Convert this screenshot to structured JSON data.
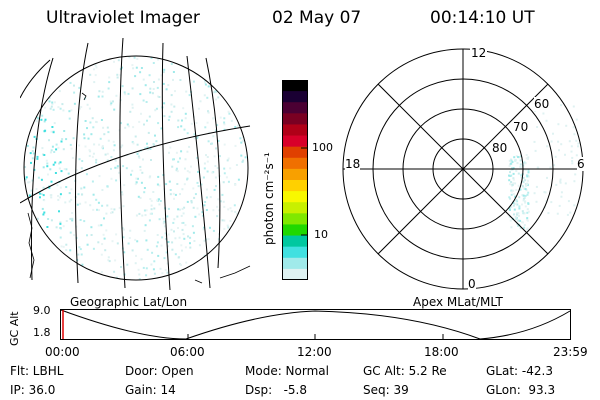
{
  "header": {
    "instrument": "Ultraviolet Imager",
    "date": "02 May 07",
    "time": "00:14:10 UT"
  },
  "left_map": {
    "caption": "Geographic Lat/Lon"
  },
  "colorbar": {
    "label": "photon cm⁻²s⁻¹",
    "tick_100": "100",
    "tick_10": "10",
    "colors": [
      "#000000",
      "#1a0033",
      "#4b0033",
      "#7a0022",
      "#b00018",
      "#d8002a",
      "#e04000",
      "#f07000",
      "#f8a000",
      "#ffd000",
      "#f8f800",
      "#c8f000",
      "#80e800",
      "#20d800",
      "#00c8a0",
      "#40e0e0",
      "#a0eaea",
      "#dff2f2"
    ]
  },
  "polar": {
    "caption": "Apex MLat/MLT",
    "mlt_12": "12",
    "mlt_18": "18",
    "mlt_6": "6",
    "mlt_0": "0",
    "lat_60": "60",
    "lat_70": "70",
    "lat_80": "80"
  },
  "orbit": {
    "axis_label": "GC Alt",
    "y_top": "9.0",
    "y_bottom": "1.8",
    "x_ticks": [
      "00:00",
      "06:00",
      "12:00",
      "18:00",
      "23:59"
    ]
  },
  "info": {
    "row1": {
      "filter": "Flt: LBHL",
      "door": "Door: Open",
      "mode": "Mode: Normal",
      "gc_alt": "GC Alt: 5.2 Re",
      "glat": "GLat: -42.3"
    },
    "row2": {
      "ip": "IP: 36.0",
      "gain": "Gain: 14",
      "dsp": "Dsp:   -5.8",
      "seq": "Seq: 39",
      "glon": "GLon:  93.3"
    }
  }
}
